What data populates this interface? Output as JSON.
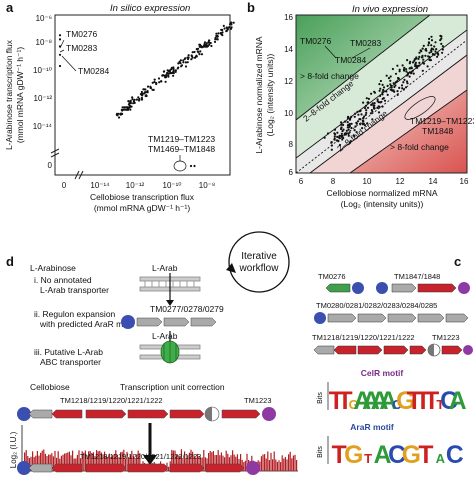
{
  "panels": {
    "a": {
      "label": "a",
      "title": "In silico expression",
      "ylabel_line1": "L-Arabinose transcription flux",
      "ylabel_line2": "(mmol mRNA gDW⁻¹ h⁻¹)",
      "xlabel_line1": "Cellobiose transcription flux",
      "xlabel_line2": "(mmol mRNA gDW⁻¹ h⁻¹)",
      "yticks": [
        "10⁻⁶",
        "10⁻⁸",
        "10⁻¹⁰",
        "10⁻¹²",
        "10⁻¹⁴",
        "0"
      ],
      "xticks": [
        "0",
        "10⁻¹⁴",
        "10⁻¹²",
        "10⁻¹⁰",
        "10⁻⁸"
      ],
      "annotations": [
        "TM0276",
        "TM0283",
        "TM0284",
        "TM1219–TM1223",
        "TM1469–TM1848"
      ]
    },
    "b": {
      "label": "b",
      "title": "In vivo expression",
      "ylabel_line1": "L-Arabinose normalized mRNA",
      "ylabel_line2": "(Log₂ (intensity units))",
      "xlabel_line1": "Cellobiose normalized mRNA",
      "xlabel_line2": "(Log₂ (intensity units))",
      "ticks": [
        "6",
        "8",
        "10",
        "12",
        "14",
        "16"
      ],
      "annotations": [
        "TM0276",
        "TM0283",
        "TM0284",
        "> 8-fold change",
        "2–8-fold change",
        "2–8-fold change",
        "> 8-fold change",
        "TM1219–TM1223,",
        "TM1848"
      ]
    },
    "c": {
      "label": "c",
      "operons": [
        "TM0276",
        "TM1847/1848",
        "TM0280/0281/0282/0283/0284/0285",
        "TM1218/1219/1220/1221/1222",
        "TM1223"
      ],
      "motifs": [
        {
          "name": "CelR motif",
          "color": "#7a2a8a",
          "seq": "TTGAAAACGTTTTCA",
          "axis": "Bits",
          "ticks": [
            "0",
            "1",
            "2"
          ]
        },
        {
          "name": "AraR motif",
          "color": "#2a4a9a",
          "seq": "TGTACGTAC",
          "axis": "Bits",
          "ticks": [
            "0",
            "1",
            "2"
          ]
        }
      ]
    },
    "d": {
      "label": "d",
      "cycle_line1": "Iterative",
      "cycle_line2": "workflow",
      "arabinose_title": "L-Arabinose",
      "steps": [
        "i.  No annotated",
        "L-Arab transporter",
        "ii. Regulon expansion",
        "with predicted AraR motif",
        "iii. Putative L-Arab",
        "ABC transporter"
      ],
      "arab_label1": "L-Arab",
      "arab_label2": "L-Arab",
      "genes_top": "TM0277/0278/0279",
      "cellobiose_title": "Cellobiose",
      "tu_title": "Transcription unit correction",
      "tu_genes": "TM1218/1219/1220/1221/1222",
      "tu_gene_extra": "TM1223",
      "log_label": "Log₂ (I.U.)",
      "tu_genes_bottom": "TM1218/1219/1220/1221/1222/1223"
    }
  },
  "chart_data": [
    {
      "type": "scatter",
      "title": "In silico expression",
      "xlabel": "Cellobiose transcription flux (mmol mRNA gDW⁻¹ h⁻¹)",
      "ylabel": "L-Arabinose transcription flux (mmol mRNA gDW⁻¹ h⁻¹)",
      "scale": "log",
      "x": [
        -9.8,
        -9.4,
        -9.0,
        -8.6,
        -8.2,
        -7.8,
        -7.4,
        -7.0,
        -10.5,
        -11.0,
        -11.6,
        -12.2,
        -12.8
      ],
      "y": [
        -9.7,
        -9.3,
        -8.9,
        -8.5,
        -8.1,
        -7.8,
        -7.5,
        -7.1,
        -10.6,
        -11.2,
        -11.9,
        -12.4,
        -12.9
      ]
    },
    {
      "type": "scatter",
      "title": "In vivo expression",
      "xlabel": "Cellobiose normalized mRNA (Log₂ (intensity units))",
      "ylabel": "L-Arabinose normalized mRNA (Log₂ (intensity units))",
      "xlim": [
        6,
        16
      ],
      "ylim": [
        6,
        16
      ],
      "x": [
        8.5,
        9.0,
        9.5,
        10.0,
        10.5,
        11.0,
        11.5,
        12.0,
        12.5,
        13.0,
        13.5,
        14.0
      ],
      "y": [
        8.6,
        9.1,
        9.4,
        10.1,
        10.4,
        11.1,
        11.4,
        12.1,
        12.3,
        12.9,
        13.3,
        13.8
      ]
    }
  ]
}
